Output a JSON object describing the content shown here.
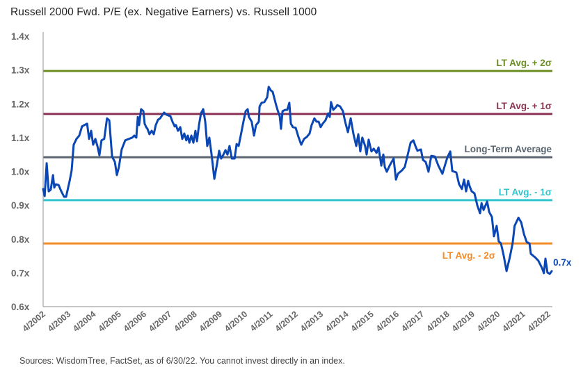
{
  "chart_data": {
    "type": "line",
    "title": "Russell 2000 Fwd. P/E (ex. Negative Earners) vs. Russell 1000",
    "xlabel": "",
    "ylabel": "",
    "ylim": [
      0.6,
      1.4
    ],
    "xlim": [
      2002.25,
      2022.45
    ],
    "yticks": [
      1.4,
      1.3,
      1.2,
      1.1,
      1.0,
      0.9,
      0.8,
      0.7,
      0.6
    ],
    "ytick_labels": [
      "1.4x",
      "1.3x",
      "1.2x",
      "1.1x",
      "1.0x",
      "0.9x",
      "0.8x",
      "0.7x",
      "0.6x"
    ],
    "xtick_labels": [
      "4/2002",
      "4/2003",
      "4/2004",
      "4/2005",
      "4/2006",
      "4/2007",
      "4/2008",
      "4/2009",
      "4/2010",
      "4/2011",
      "4/2012",
      "4/2013",
      "4/2014",
      "4/2015",
      "4/2016",
      "4/2017",
      "4/2018",
      "4/2019",
      "4/2020",
      "4/2021",
      "4/2022"
    ],
    "xtick_positions": [
      2002.25,
      2003.25,
      2004.25,
      2005.25,
      2006.25,
      2007.25,
      2008.25,
      2009.25,
      2010.25,
      2011.25,
      2012.25,
      2013.25,
      2014.25,
      2015.25,
      2016.25,
      2017.25,
      2018.25,
      2019.25,
      2020.25,
      2021.25,
      2022.25
    ],
    "grid": false,
    "series": [
      {
        "name": "Russell 2000 / Russell 1000 Fwd. P/E ratio",
        "color": "#0a46b4",
        "x": [
          2002.25,
          2002.31,
          2002.39,
          2002.47,
          2002.55,
          2002.64,
          2002.69,
          2002.75,
          2002.86,
          2002.97,
          2003.08,
          2003.16,
          2003.3,
          2003.38,
          2003.46,
          2003.57,
          2003.68,
          2003.79,
          2003.88,
          2003.99,
          2004.07,
          2004.15,
          2004.23,
          2004.32,
          2004.4,
          2004.48,
          2004.56,
          2004.67,
          2004.78,
          2004.87,
          2004.98,
          2005.09,
          2005.17,
          2005.25,
          2005.36,
          2005.5,
          2005.64,
          2005.78,
          2005.86,
          2005.94,
          2006.0,
          2006.05,
          2006.13,
          2006.22,
          2006.27,
          2006.33,
          2006.38,
          2006.46,
          2006.55,
          2006.63,
          2006.71,
          2006.8,
          2006.88,
          2006.96,
          2007.04,
          2007.13,
          2007.29,
          2007.37,
          2007.46,
          2007.51,
          2007.59,
          2007.68,
          2007.76,
          2007.84,
          2007.92,
          2007.98,
          2008.04,
          2008.12,
          2008.2,
          2008.28,
          2008.34,
          2008.42,
          2008.5,
          2008.59,
          2008.67,
          2008.75,
          2008.83,
          2008.92,
          2009.03,
          2009.14,
          2009.22,
          2009.3,
          2009.39,
          2009.47,
          2009.55,
          2009.63,
          2009.72,
          2009.83,
          2009.91,
          2009.99,
          2010.1,
          2010.18,
          2010.27,
          2010.35,
          2010.4,
          2010.51,
          2010.6,
          2010.68,
          2010.79,
          2010.82,
          2010.9,
          2011.01,
          2011.12,
          2011.18,
          2011.26,
          2011.34,
          2011.45,
          2011.53,
          2011.62,
          2011.67,
          2011.73,
          2011.84,
          2011.92,
          2012.0,
          2012.06,
          2012.14,
          2012.25,
          2012.36,
          2012.47,
          2012.58,
          2012.69,
          2012.8,
          2012.88,
          2012.99,
          2013.08,
          2013.16,
          2013.24,
          2013.32,
          2013.43,
          2013.54,
          2013.6,
          2013.65,
          2013.74,
          2013.82,
          2013.9,
          2014.01,
          2014.12,
          2014.21,
          2014.32,
          2014.43,
          2014.54,
          2014.65,
          2014.73,
          2014.81,
          2014.89,
          2015.0,
          2015.06,
          2015.14,
          2015.25,
          2015.34,
          2015.45,
          2015.53,
          2015.64,
          2015.72,
          2015.78,
          2015.86,
          2015.97,
          2016.13,
          2016.22,
          2016.3,
          2016.46,
          2016.57,
          2016.8,
          2016.91,
          2016.99,
          2017.07,
          2017.21,
          2017.29,
          2017.4,
          2017.51,
          2017.62,
          2017.76,
          2017.9,
          2018.06,
          2018.25,
          2018.37,
          2018.45,
          2018.61,
          2018.72,
          2018.83,
          2018.92,
          2019.0,
          2019.08,
          2019.14,
          2019.22,
          2019.33,
          2019.44,
          2019.55,
          2019.61,
          2019.69,
          2019.83,
          2019.91,
          2020.02,
          2020.1,
          2020.21,
          2020.29,
          2020.38,
          2020.49,
          2020.6,
          2020.73,
          2020.84,
          2020.92,
          2021.07,
          2021.18,
          2021.29,
          2021.4,
          2021.51,
          2021.56,
          2021.73,
          2021.86,
          2022.0,
          2022.08,
          2022.14,
          2022.22,
          2022.31,
          2022.39
        ],
        "y": [
          0.948,
          0.927,
          1.024,
          0.941,
          0.946,
          0.989,
          0.952,
          0.962,
          0.96,
          0.941,
          0.925,
          0.925,
          0.972,
          1.003,
          1.079,
          1.096,
          1.106,
          1.133,
          1.137,
          1.141,
          1.096,
          1.12,
          1.079,
          1.096,
          1.075,
          1.048,
          1.092,
          1.096,
          1.157,
          1.151,
          1.044,
          1.028,
          0.989,
          1.013,
          1.065,
          1.092,
          1.096,
          1.1,
          1.106,
          1.1,
          1.161,
          1.137,
          1.184,
          1.178,
          1.141,
          1.131,
          1.126,
          1.11,
          1.12,
          1.11,
          1.137,
          1.153,
          1.157,
          1.166,
          1.174,
          1.168,
          1.163,
          1.147,
          1.133,
          1.137,
          1.12,
          1.131,
          1.096,
          1.112,
          1.092,
          1.106,
          1.085,
          1.106,
          1.085,
          1.12,
          1.089,
          1.137,
          1.172,
          1.184,
          1.147,
          1.075,
          1.1,
          1.05,
          0.978,
          1.024,
          1.061,
          1.038,
          1.05,
          1.063,
          1.05,
          1.075,
          1.038,
          1.038,
          1.081,
          1.075,
          1.116,
          1.147,
          1.178,
          1.184,
          1.161,
          1.147,
          1.106,
          1.137,
          1.147,
          1.192,
          1.203,
          1.205,
          1.219,
          1.25,
          1.24,
          1.235,
          1.203,
          1.182,
          1.163,
          1.126,
          1.178,
          1.182,
          1.182,
          1.203,
          1.141,
          1.131,
          1.129,
          1.102,
          1.079,
          1.096,
          1.102,
          1.112,
          1.137,
          1.157,
          1.147,
          1.147,
          1.131,
          1.141,
          1.151,
          1.172,
          1.161,
          1.205,
          1.182,
          1.188,
          1.196,
          1.192,
          1.178,
          1.147,
          1.116,
          1.157,
          1.11,
          1.075,
          1.11,
          1.059,
          1.1,
          1.075,
          1.05,
          1.094,
          1.059,
          1.067,
          1.055,
          1.071,
          1.017,
          1.05,
          1.013,
          0.999,
          1.017,
          1.038,
          0.976,
          0.993,
          1.003,
          1.013,
          1.085,
          1.092,
          1.075,
          1.061,
          1.065,
          1.034,
          1.028,
          0.999,
          1.046,
          1.044,
          1.017,
          0.993,
          1.04,
          1.059,
          1.001,
          0.997,
          0.962,
          0.948,
          0.976,
          0.941,
          0.972,
          0.956,
          0.941,
          0.935,
          0.9,
          0.876,
          0.906,
          0.886,
          0.911,
          0.88,
          0.865,
          0.808,
          0.839,
          0.793,
          0.787,
          0.75,
          0.705,
          0.746,
          0.787,
          0.839,
          0.863,
          0.849,
          0.814,
          0.791,
          0.787,
          0.756,
          0.746,
          0.736,
          0.715,
          0.699,
          0.742,
          0.701,
          0.697,
          0.705
        ]
      }
    ],
    "reference_lines": [
      {
        "name": "lt-avg-plus-2sigma",
        "label": "LT Avg. + 2σ",
        "value": 1.297,
        "color": "#6b8e23",
        "label_position": "above-right"
      },
      {
        "name": "lt-avg-plus-1sigma",
        "label": "LT Avg. + 1σ",
        "value": 1.17,
        "color": "#8b3355",
        "label_position": "above-right"
      },
      {
        "name": "long-term-average",
        "label": "Long-Term Average",
        "value": 1.042,
        "color": "#5a6570",
        "label_position": "above-right"
      },
      {
        "name": "lt-avg-minus-1sigma",
        "label": "LT Avg. - 1σ",
        "value": 0.915,
        "color": "#2ec4d0",
        "label_position": "above-right"
      },
      {
        "name": "lt-avg-minus-2sigma",
        "label": "LT Avg. - 2σ",
        "value": 0.787,
        "color": "#f28c28",
        "label_position": "below-right"
      }
    ],
    "annotations": [
      {
        "text": "0.7x",
        "x": 2022.39,
        "y": 0.705,
        "color": "#0a46b4"
      }
    ]
  },
  "footer": {
    "source": "Sources: WisdomTree, FactSet, as of 6/30/22. You cannot invest directly in an index."
  }
}
